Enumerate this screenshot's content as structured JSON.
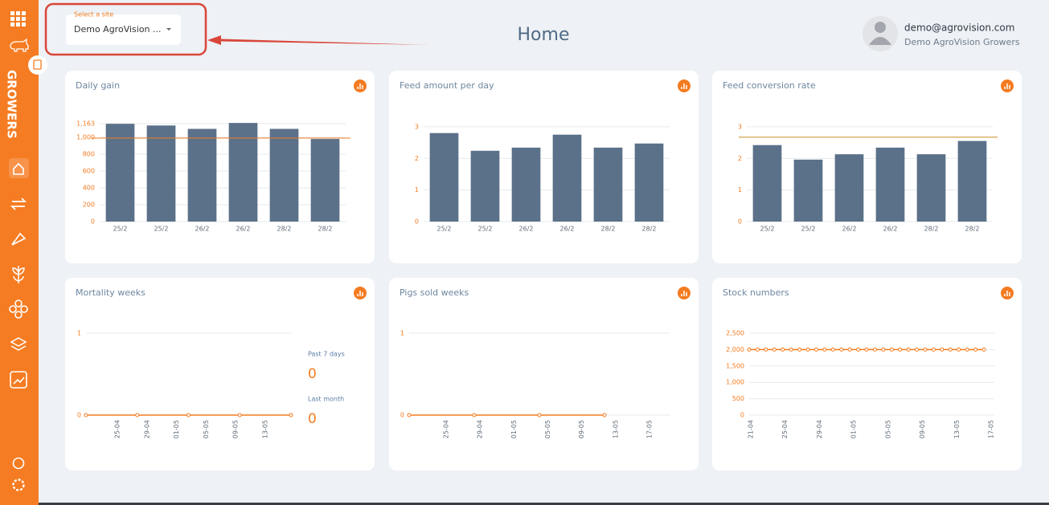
{
  "header": {
    "site_label": "Select a site",
    "site_value": "Demo AgroVision ...",
    "title": "Home",
    "user_email": "demo@agrovision.com",
    "user_org": "Demo AgroVision Growers"
  },
  "sidebar": {
    "brand": "GROWERS"
  },
  "chart_data": [
    {
      "type": "bar",
      "title": "Daily gain",
      "categories": [
        "25/2",
        "25/2",
        "26/2",
        "26/2",
        "28/2",
        "28/2"
      ],
      "values": [
        1160,
        1140,
        1100,
        1170,
        1100,
        980
      ],
      "color": "#5b7189",
      "reference_line": 990,
      "reference_color": "#f47b20",
      "ylim": [
        0,
        1200
      ],
      "yticks": [
        0,
        200,
        400,
        600,
        800,
        {
          "value": 1000,
          "label": "1,000"
        },
        {
          "value": 1163,
          "label": "1,163"
        }
      ]
    },
    {
      "type": "bar",
      "title": "Feed amount per day",
      "categories": [
        "25/2",
        "25/2",
        "26/2",
        "26/2",
        "28/2",
        "28/2"
      ],
      "values": [
        2.8,
        2.24,
        2.34,
        2.75,
        2.34,
        2.47
      ],
      "color": "#5b7189",
      "ylim": [
        0,
        3.2
      ],
      "yticks": [
        0,
        1,
        2,
        3
      ]
    },
    {
      "type": "bar",
      "title": "Feed conversion rate",
      "categories": [
        "25/2",
        "25/2",
        "26/2",
        "26/2",
        "28/2",
        "28/2"
      ],
      "values": [
        2.42,
        1.96,
        2.13,
        2.34,
        2.13,
        2.55
      ],
      "color": "#5b7189",
      "reference_line": 2.67,
      "reference_color": "#c98a1e",
      "ylim": [
        0,
        3.2
      ],
      "yticks": [
        0,
        1,
        2,
        3
      ]
    },
    {
      "type": "line",
      "title": "Mortality weeks",
      "xticks": [
        "25-04",
        "29-04",
        "01-05",
        "05-05",
        "09-05",
        "13-05"
      ],
      "values": [
        0,
        0,
        0,
        0,
        0
      ],
      "color": "#f47b20",
      "ylim": [
        0,
        1
      ],
      "yticks": [
        0,
        1
      ],
      "stats": [
        {
          "label": "Past 7 days",
          "value": 0
        },
        {
          "label": "Last month",
          "value": 0
        }
      ]
    },
    {
      "type": "line",
      "title": "Pigs sold weeks",
      "xticks": [
        "25-04",
        "29-04",
        "01-05",
        "05-05",
        "09-05",
        "13-05",
        "17-05"
      ],
      "values": [
        0,
        0,
        0,
        0
      ],
      "color": "#f47b20",
      "ylim": [
        0,
        1
      ],
      "yticks": [
        0,
        1
      ]
    },
    {
      "type": "line",
      "title": "Stock numbers",
      "xticks": [
        "21-04",
        "25-04",
        "29-04",
        "01-05",
        "05-05",
        "09-05",
        "13-05",
        "17-05"
      ],
      "values": [
        2000,
        2000,
        2000,
        2000,
        2000,
        2000,
        2000,
        2000,
        2000,
        2000,
        2000,
        2000,
        2000,
        2000,
        2000,
        2000,
        2000,
        2000,
        2000,
        2000,
        2000,
        2000,
        2000,
        2000,
        2000,
        2000,
        2000,
        2000,
        2000
      ],
      "color": "#f47b20",
      "ylim": [
        0,
        2500
      ],
      "yticks": [
        0,
        500,
        {
          "value": 1000,
          "label": "1,000"
        },
        {
          "value": 1500,
          "label": "1,500"
        },
        {
          "value": 2000,
          "label": "2,000"
        },
        {
          "value": 2500,
          "label": "2,500"
        }
      ]
    }
  ]
}
